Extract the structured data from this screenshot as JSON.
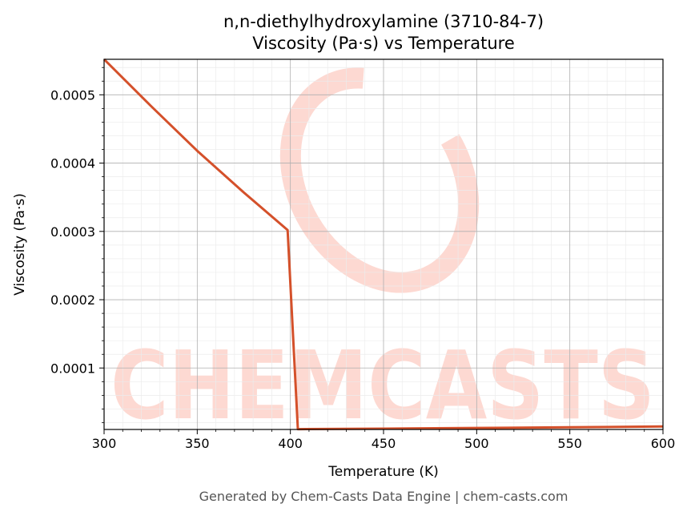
{
  "chart_data": {
    "type": "line",
    "title": "n,n-diethylhydroxylamine (3710-84-7)",
    "subtitle": "Viscosity (Pa·s) vs Temperature",
    "xlabel": "Temperature (K)",
    "ylabel": "Viscosity (Pa·s)",
    "xlim": [
      300,
      600
    ],
    "ylim": [
      1e-05,
      0.000552
    ],
    "x_ticks": [
      300,
      350,
      400,
      450,
      500,
      550,
      600
    ],
    "x_tick_labels": [
      "300",
      "350",
      "400",
      "450",
      "500",
      "550",
      "600"
    ],
    "y_ticks": [
      0.0001,
      0.0002,
      0.0003,
      0.0004,
      0.0005
    ],
    "y_tick_labels": [
      "0.0001",
      "0.0002",
      "0.0003",
      "0.0004",
      "0.0005"
    ],
    "grid": true,
    "minor_grid": true,
    "line_color": "#d4502a",
    "series": [
      {
        "x": [
          300,
          325,
          350,
          375,
          398.5,
          404,
          450,
          500,
          550,
          600
        ],
        "y": [
          0.000552,
          0.000484,
          0.000418,
          0.000357,
          0.000302,
          1.05e-05,
          1.12e-05,
          1.22e-05,
          1.32e-05,
          1.45e-05
        ]
      }
    ]
  },
  "watermark": {
    "text": "CHEMCASTS",
    "color": "#fdd9d2"
  },
  "footer": "Generated by Chem-Casts Data Engine | chem-casts.com"
}
